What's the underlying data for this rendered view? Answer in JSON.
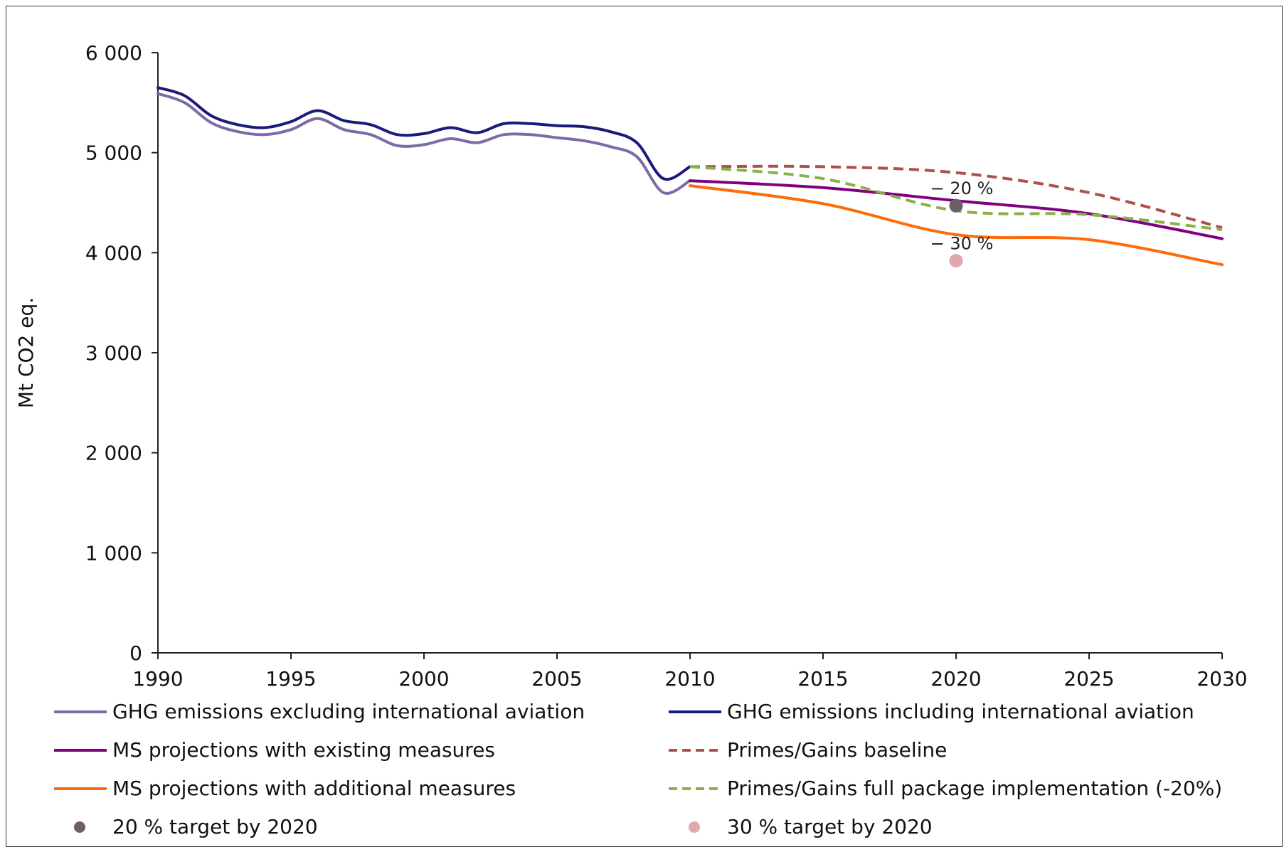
{
  "chart_data": {
    "type": "line",
    "title": "",
    "xlabel": "",
    "ylabel": "Mt CO2 eq.",
    "xlim": [
      1990,
      2030
    ],
    "ylim": [
      0,
      6000
    ],
    "x_ticks": [
      1990,
      1995,
      2000,
      2005,
      2010,
      2015,
      2020,
      2025,
      2030
    ],
    "y_ticks": [
      0,
      1000,
      2000,
      3000,
      4000,
      5000,
      6000
    ],
    "x_tick_labels": [
      "1990",
      "1995",
      "2000",
      "2005",
      "2010",
      "2015",
      "2020",
      "2025",
      "2030"
    ],
    "y_tick_labels": [
      "0",
      "1 000",
      "2 000",
      "3 000",
      "4 000",
      "5 000",
      "6 000"
    ],
    "grid": false,
    "legend_position": "bottom",
    "series": [
      {
        "name": "GHG emissions excluding international aviation",
        "color": "#7e6aa6",
        "dash": "solid",
        "x": [
          1990,
          1991,
          1992,
          1993,
          1994,
          1995,
          1996,
          1997,
          1998,
          1999,
          2000,
          2001,
          2002,
          2003,
          2004,
          2005,
          2006,
          2007,
          2008,
          2009,
          2010
        ],
        "y": [
          5590,
          5500,
          5300,
          5210,
          5180,
          5230,
          5340,
          5230,
          5180,
          5070,
          5080,
          5140,
          5100,
          5180,
          5180,
          5150,
          5120,
          5060,
          4960,
          4600,
          4720
        ]
      },
      {
        "name": "GHG emissions including international aviation",
        "color": "#1a1a7a",
        "dash": "solid",
        "x": [
          1990,
          1991,
          1992,
          1993,
          1994,
          1995,
          1996,
          1997,
          1998,
          1999,
          2000,
          2001,
          2002,
          2003,
          2004,
          2005,
          2006,
          2007,
          2008,
          2009,
          2010
        ],
        "y": [
          5650,
          5570,
          5370,
          5280,
          5250,
          5310,
          5420,
          5320,
          5280,
          5180,
          5190,
          5250,
          5200,
          5290,
          5290,
          5270,
          5260,
          5210,
          5100,
          4740,
          4860
        ]
      },
      {
        "name": "MS projections with existing measures",
        "color": "#800080",
        "dash": "solid",
        "x": [
          2010,
          2015,
          2020,
          2025,
          2030
        ],
        "y": [
          4720,
          4650,
          4520,
          4390,
          4140
        ]
      },
      {
        "name": "Primes/Gains baseline",
        "color": "#b0504a",
        "dash": "dashed",
        "x": [
          2010,
          2015,
          2020,
          2025,
          2030
        ],
        "y": [
          4860,
          4860,
          4800,
          4600,
          4250
        ]
      },
      {
        "name": "MS projections with additional measures",
        "color": "#ff6a0a",
        "dash": "solid",
        "x": [
          2010,
          2015,
          2020,
          2025,
          2030
        ],
        "y": [
          4670,
          4490,
          4180,
          4130,
          3880
        ]
      },
      {
        "name": "Primes/Gains full package implementation (-20%)",
        "color": "#8ab04a",
        "dash": "dashed",
        "x": [
          2010,
          2015,
          2020,
          2025,
          2030
        ],
        "y": [
          4860,
          4740,
          4420,
          4380,
          4230
        ]
      }
    ],
    "points": [
      {
        "name": "20 % target by 2020",
        "color": "#6e5e66",
        "x": 2020,
        "y": 4470,
        "label": "− 20 %"
      },
      {
        "name": "30 % target by 2020",
        "color": "#e0a8aa",
        "x": 2020,
        "y": 3920,
        "label": "− 30 %"
      }
    ],
    "legend": [
      {
        "series": 0,
        "kind": "line"
      },
      {
        "series": 1,
        "kind": "line"
      },
      {
        "series": 2,
        "kind": "line"
      },
      {
        "series": 3,
        "kind": "line"
      },
      {
        "series": 4,
        "kind": "line"
      },
      {
        "series": 5,
        "kind": "line"
      },
      {
        "point": 0,
        "kind": "marker"
      },
      {
        "point": 1,
        "kind": "marker"
      }
    ]
  }
}
